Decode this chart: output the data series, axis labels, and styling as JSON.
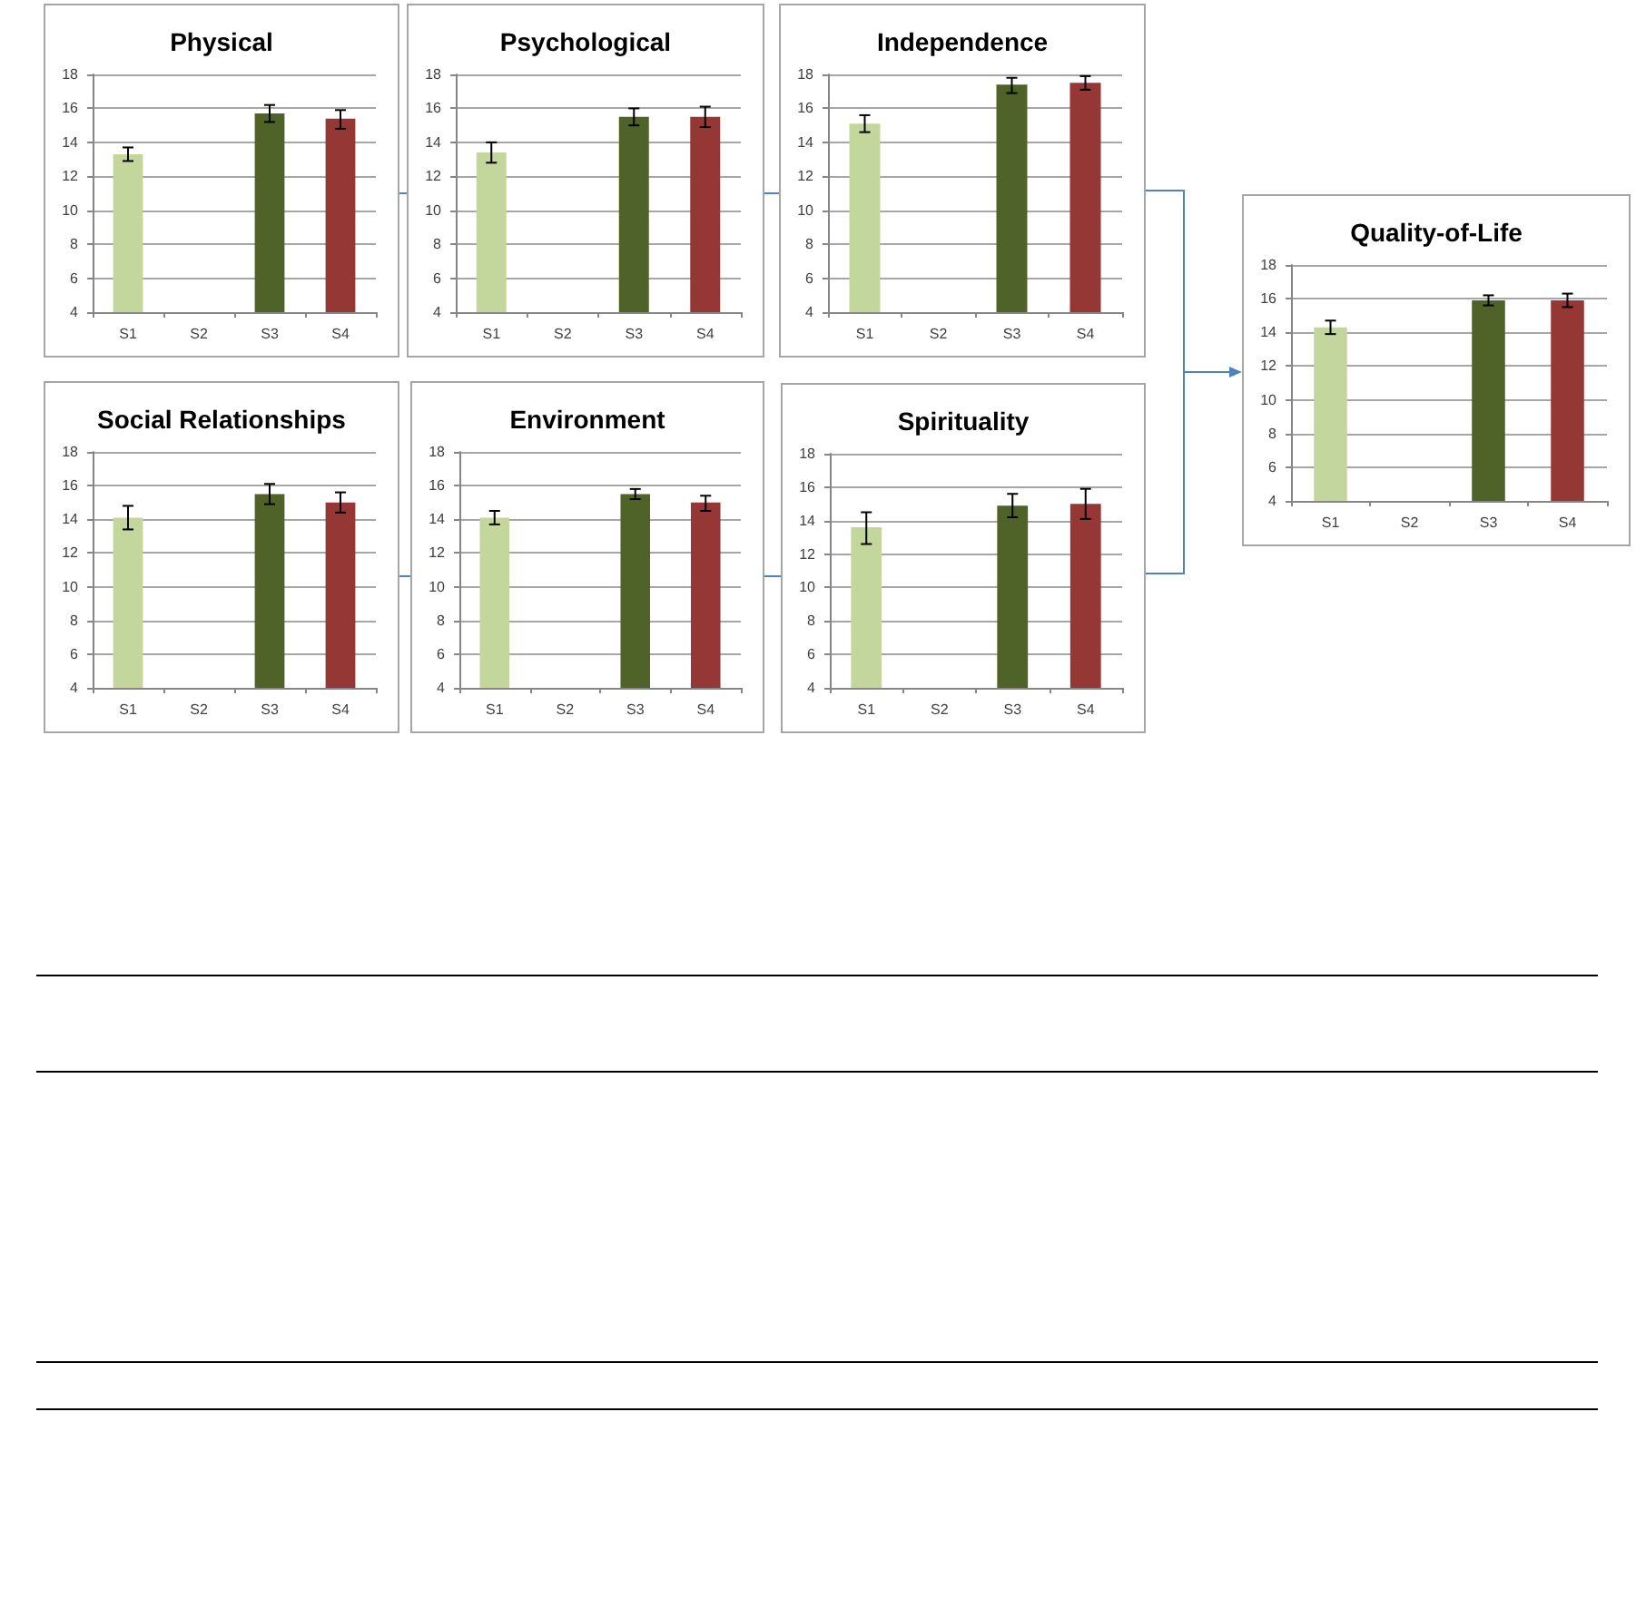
{
  "chart_data": [
    {
      "type": "bar",
      "title": "Physical",
      "categories": [
        "S1",
        "S2",
        "S3",
        "S4"
      ],
      "values": [
        13.3,
        null,
        15.7,
        15.4
      ],
      "colors": [
        "#c3d69b",
        null,
        "#4f6228",
        "#953735"
      ],
      "errors": [
        [
          12.9,
          13.7
        ],
        null,
        [
          15.2,
          16.2
        ],
        [
          14.8,
          15.9
        ]
      ],
      "ylim": [
        4,
        18
      ],
      "yticks": [
        4,
        6,
        8,
        10,
        12,
        14,
        16,
        18
      ],
      "grid": "y"
    },
    {
      "type": "bar",
      "title": "Psychological",
      "categories": [
        "S1",
        "S2",
        "S3",
        "S4"
      ],
      "values": [
        13.4,
        null,
        15.5,
        15.5
      ],
      "colors": [
        "#c3d69b",
        null,
        "#4f6228",
        "#953735"
      ],
      "errors": [
        [
          12.8,
          14.0
        ],
        null,
        [
          15.0,
          16.0
        ],
        [
          14.9,
          16.1
        ]
      ],
      "ylim": [
        4,
        18
      ],
      "yticks": [
        4,
        6,
        8,
        10,
        12,
        14,
        16,
        18
      ],
      "grid": "y"
    },
    {
      "type": "bar",
      "title": "Independence",
      "categories": [
        "S1",
        "S2",
        "S3",
        "S4"
      ],
      "values": [
        15.1,
        null,
        17.4,
        17.5
      ],
      "colors": [
        "#c3d69b",
        null,
        "#4f6228",
        "#953735"
      ],
      "errors": [
        [
          14.6,
          15.6
        ],
        null,
        [
          16.9,
          17.8
        ],
        [
          17.1,
          17.9
        ]
      ],
      "ylim": [
        4,
        18
      ],
      "yticks": [
        4,
        6,
        8,
        10,
        12,
        14,
        16,
        18
      ],
      "grid": "y"
    },
    {
      "type": "bar",
      "title": "Social Relationships",
      "categories": [
        "S1",
        "S2",
        "S3",
        "S4"
      ],
      "values": [
        14.1,
        null,
        15.5,
        15.0
      ],
      "colors": [
        "#c3d69b",
        null,
        "#4f6228",
        "#953735"
      ],
      "errors": [
        [
          13.4,
          14.8
        ],
        null,
        [
          14.9,
          16.1
        ],
        [
          14.4,
          15.6
        ]
      ],
      "ylim": [
        4,
        18
      ],
      "yticks": [
        4,
        6,
        8,
        10,
        12,
        14,
        16,
        18
      ],
      "grid": "y"
    },
    {
      "type": "bar",
      "title": "Environment",
      "categories": [
        "S1",
        "S2",
        "S3",
        "S4"
      ],
      "values": [
        14.1,
        null,
        15.5,
        15.0
      ],
      "colors": [
        "#c3d69b",
        null,
        "#4f6228",
        "#953735"
      ],
      "errors": [
        [
          13.7,
          14.5
        ],
        null,
        [
          15.2,
          15.8
        ],
        [
          14.5,
          15.4
        ]
      ],
      "ylim": [
        4,
        18
      ],
      "yticks": [
        4,
        6,
        8,
        10,
        12,
        14,
        16,
        18
      ],
      "grid": "y"
    },
    {
      "type": "bar",
      "title": "Spirituality",
      "categories": [
        "S1",
        "S2",
        "S3",
        "S4"
      ],
      "values": [
        13.6,
        null,
        14.9,
        15.0
      ],
      "colors": [
        "#c3d69b",
        null,
        "#4f6228",
        "#953735"
      ],
      "errors": [
        [
          12.6,
          14.5
        ],
        null,
        [
          14.2,
          15.6
        ],
        [
          14.1,
          15.9
        ]
      ],
      "ylim": [
        4,
        18
      ],
      "yticks": [
        4,
        6,
        8,
        10,
        12,
        14,
        16,
        18
      ],
      "grid": "y"
    },
    {
      "type": "bar",
      "title": "Quality-of-Life",
      "categories": [
        "S1",
        "S2",
        "S3",
        "S4"
      ],
      "values": [
        14.3,
        null,
        15.9,
        15.9
      ],
      "colors": [
        "#c3d69b",
        null,
        "#4f6228",
        "#953735"
      ],
      "errors": [
        [
          13.9,
          14.7
        ],
        null,
        [
          15.6,
          16.2
        ],
        [
          15.5,
          16.3
        ]
      ],
      "ylim": [
        4,
        18
      ],
      "yticks": [
        4,
        6,
        8,
        10,
        12,
        14,
        16,
        18
      ],
      "grid": "y"
    }
  ]
}
